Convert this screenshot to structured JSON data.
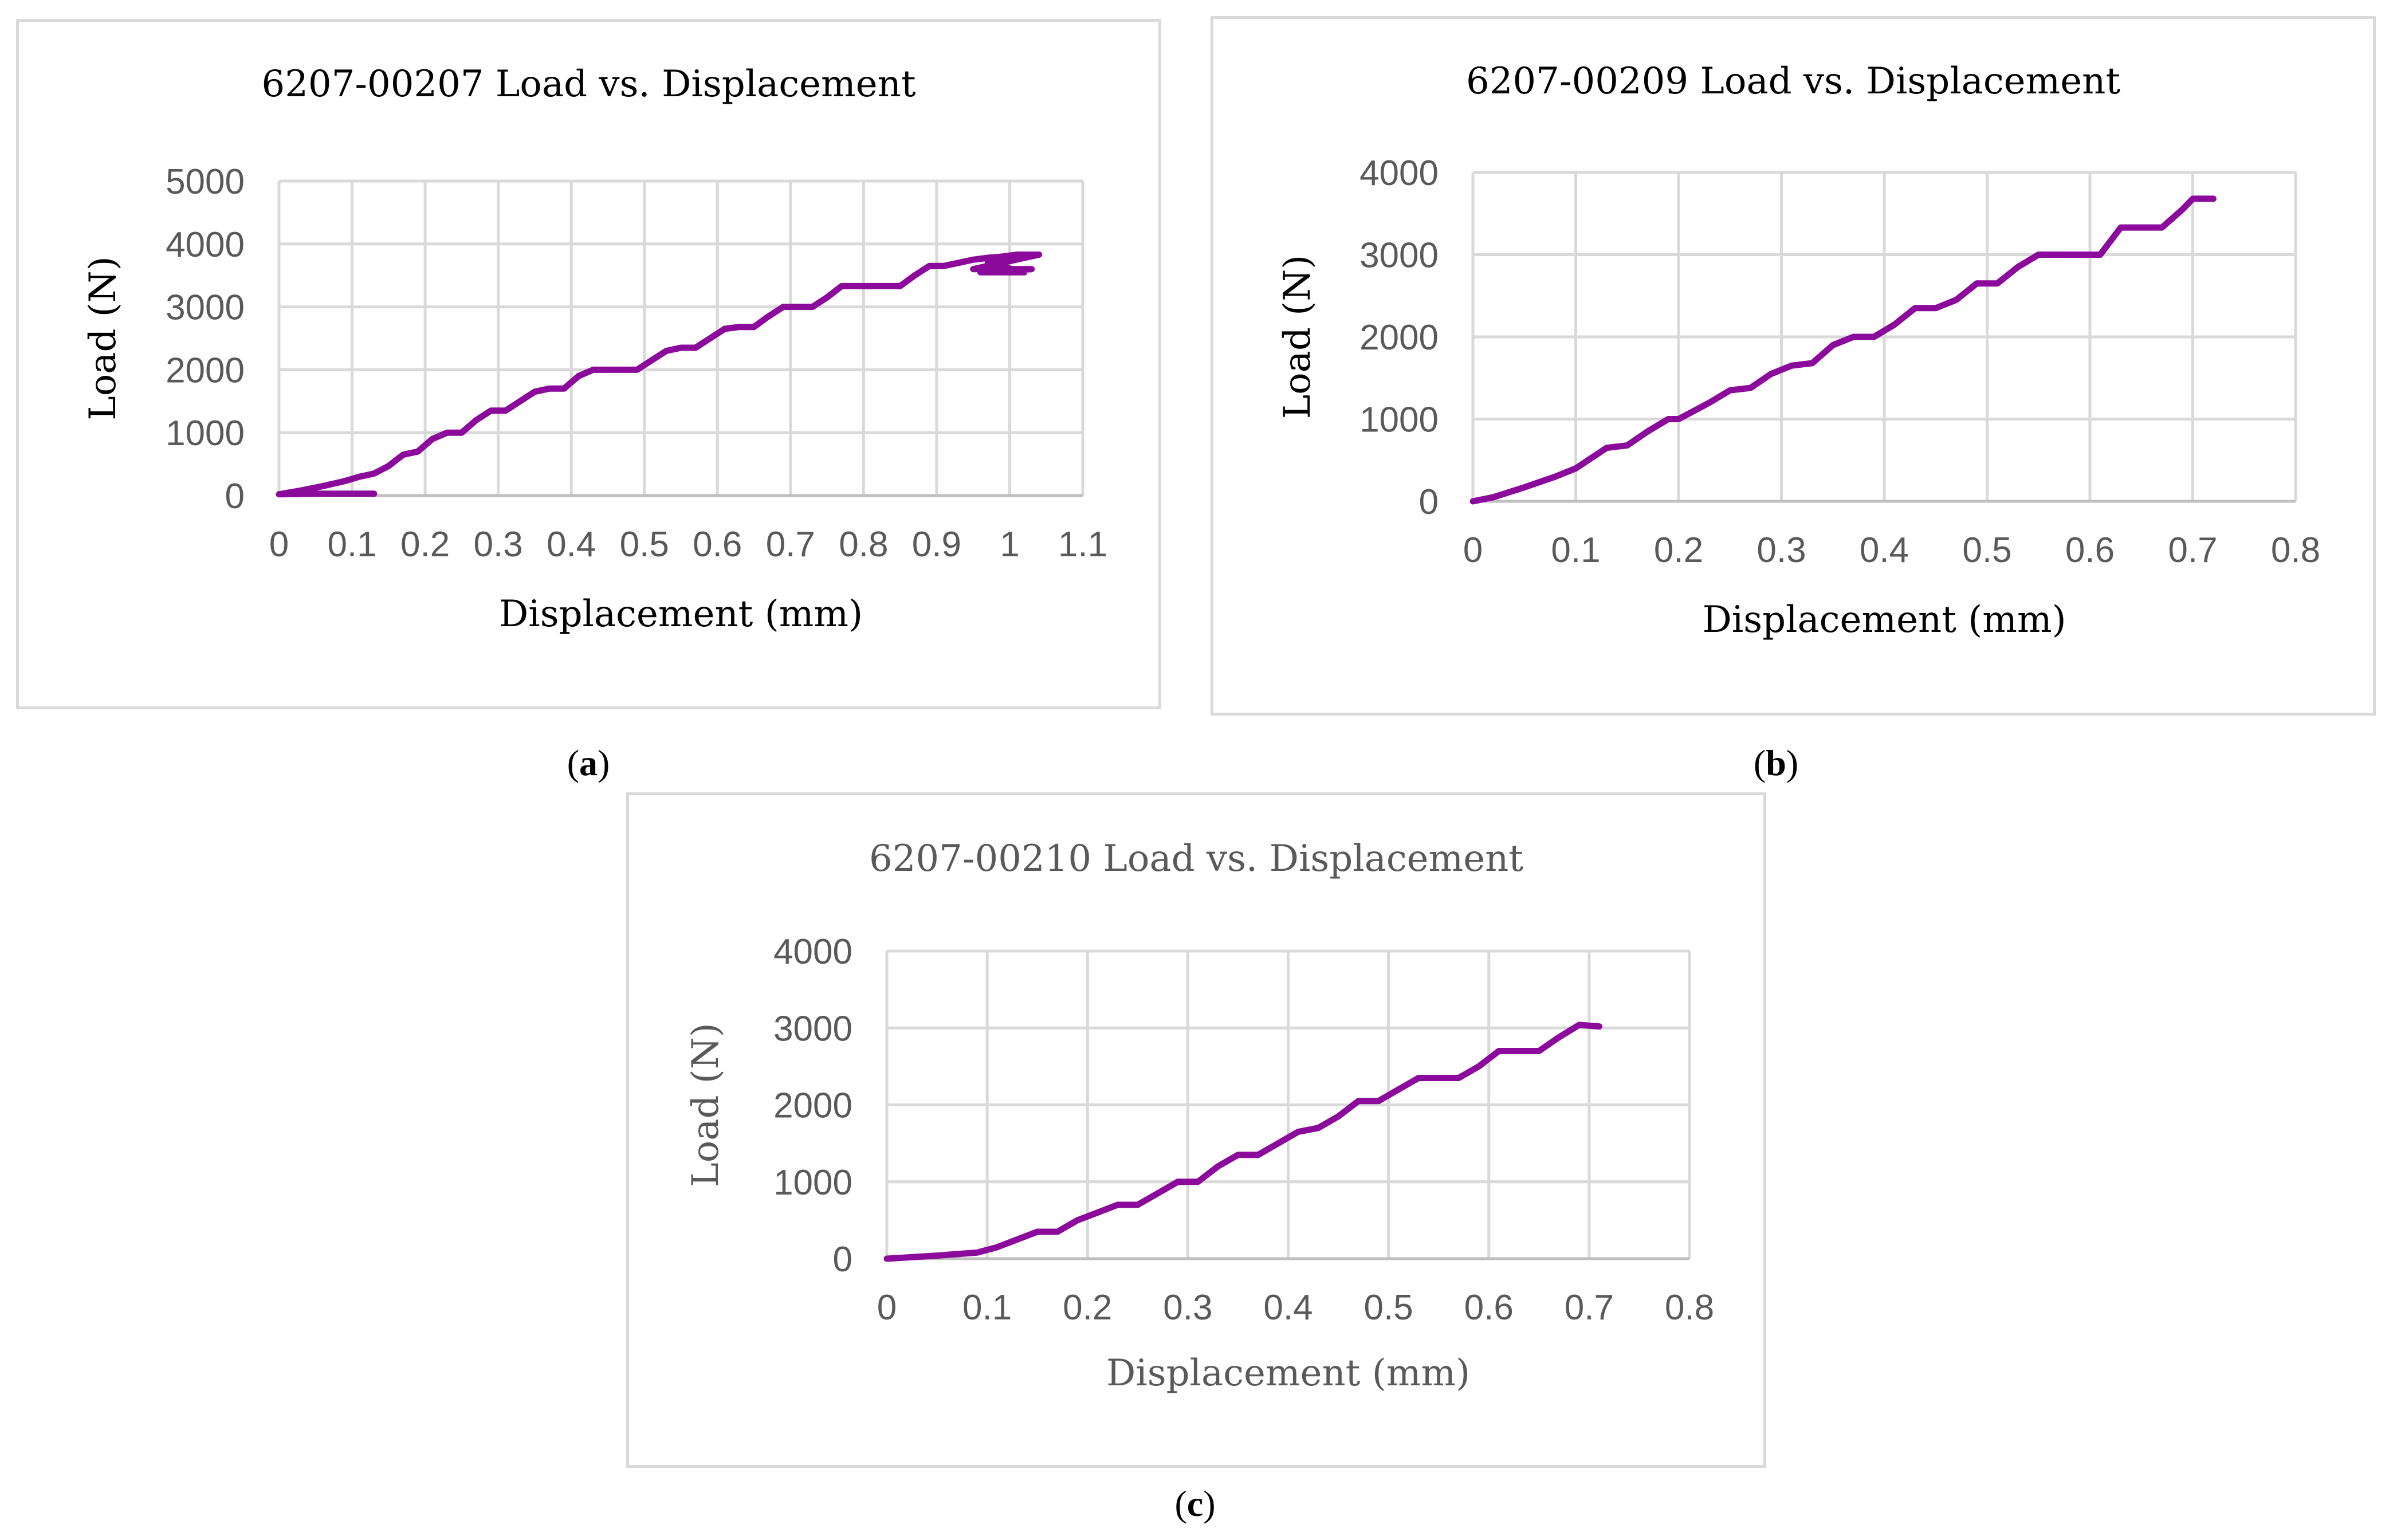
{
  "figure": {
    "captions": [
      "(a)",
      "(b)",
      "(c)"
    ]
  },
  "colors": {
    "series": "#8b0a9b",
    "grid": "#d9d9d9",
    "axis": "#bfbfbf",
    "tick_text": "#595959"
  },
  "chart_data": [
    {
      "type": "line",
      "title": "6207-00207 Load vs. Displacement",
      "xlabel": "Displacement (mm)",
      "ylabel": "Load (N)",
      "xlim": [
        0,
        1.1
      ],
      "ylim": [
        0,
        5000
      ],
      "xticks": [
        "0",
        "0.1",
        "0.2",
        "0.3",
        "0.4",
        "0.5",
        "0.6",
        "0.7",
        "0.8",
        "0.9",
        "1",
        "1.1"
      ],
      "yticks": [
        "0",
        "1000",
        "2000",
        "3000",
        "4000",
        "5000"
      ],
      "grid": true,
      "series": [
        {
          "name": "Load",
          "x": [
            0.13,
            0.05,
            0.0,
            0.03,
            0.06,
            0.09,
            0.11,
            0.13,
            0.15,
            0.17,
            0.19,
            0.21,
            0.23,
            0.25,
            0.27,
            0.29,
            0.31,
            0.33,
            0.35,
            0.37,
            0.39,
            0.41,
            0.43,
            0.45,
            0.47,
            0.49,
            0.51,
            0.53,
            0.55,
            0.57,
            0.59,
            0.61,
            0.63,
            0.65,
            0.67,
            0.69,
            0.71,
            0.73,
            0.75,
            0.77,
            0.79,
            0.81,
            0.83,
            0.85,
            0.87,
            0.89,
            0.91,
            0.93,
            0.95,
            0.97,
            0.99,
            1.01,
            1.04,
            0.95,
            1.03,
            0.96,
            1.02,
            0.97,
            1.04
          ],
          "y": [
            30,
            30,
            20,
            80,
            150,
            230,
            300,
            350,
            470,
            650,
            700,
            900,
            1000,
            1000,
            1200,
            1350,
            1350,
            1500,
            1650,
            1700,
            1700,
            1900,
            2000,
            2000,
            2000,
            2000,
            2150,
            2300,
            2350,
            2350,
            2500,
            2650,
            2680,
            2680,
            2850,
            3000,
            3000,
            3000,
            3150,
            3330,
            3330,
            3330,
            3330,
            3330,
            3500,
            3650,
            3650,
            3700,
            3750,
            3780,
            3800,
            3830,
            3830,
            3600,
            3600,
            3550,
            3550,
            3700,
            3830
          ]
        }
      ]
    },
    {
      "type": "line",
      "title": "6207-00209 Load vs. Displacement",
      "xlabel": "Displacement (mm)",
      "ylabel": "Load (N)",
      "xlim": [
        0,
        0.8
      ],
      "ylim": [
        0,
        4000
      ],
      "xticks": [
        "0",
        "0.1",
        "0.2",
        "0.3",
        "0.4",
        "0.5",
        "0.6",
        "0.7",
        "0.8"
      ],
      "yticks": [
        "0",
        "1000",
        "2000",
        "3000",
        "4000"
      ],
      "grid": true,
      "series": [
        {
          "name": "Load",
          "x": [
            0.0,
            0.02,
            0.05,
            0.08,
            0.1,
            0.13,
            0.15,
            0.17,
            0.19,
            0.2,
            0.23,
            0.25,
            0.27,
            0.29,
            0.31,
            0.33,
            0.35,
            0.37,
            0.39,
            0.41,
            0.43,
            0.45,
            0.47,
            0.49,
            0.51,
            0.53,
            0.55,
            0.57,
            0.59,
            0.61,
            0.63,
            0.65,
            0.67,
            0.69,
            0.7,
            0.72
          ],
          "y": [
            0,
            50,
            170,
            300,
            400,
            650,
            680,
            850,
            1000,
            1000,
            1200,
            1350,
            1380,
            1550,
            1650,
            1680,
            1900,
            2000,
            2000,
            2150,
            2350,
            2350,
            2450,
            2650,
            2650,
            2850,
            3000,
            3000,
            3000,
            3000,
            3330,
            3330,
            3330,
            3550,
            3680,
            3680
          ]
        }
      ]
    },
    {
      "type": "line",
      "title": "6207-00210 Load vs. Displacement",
      "xlabel": "Displacement (mm)",
      "ylabel": "Load (N)",
      "xlim": [
        0,
        0.8
      ],
      "ylim": [
        0,
        4000
      ],
      "xticks": [
        "0",
        "0.1",
        "0.2",
        "0.3",
        "0.4",
        "0.5",
        "0.6",
        "0.7",
        "0.8"
      ],
      "yticks": [
        "0",
        "1000",
        "2000",
        "3000",
        "4000"
      ],
      "grid": true,
      "series": [
        {
          "name": "Load",
          "x": [
            0.0,
            0.05,
            0.09,
            0.11,
            0.13,
            0.15,
            0.17,
            0.19,
            0.21,
            0.23,
            0.25,
            0.27,
            0.29,
            0.31,
            0.33,
            0.35,
            0.37,
            0.39,
            0.41,
            0.43,
            0.45,
            0.47,
            0.49,
            0.51,
            0.53,
            0.55,
            0.57,
            0.59,
            0.61,
            0.63,
            0.65,
            0.67,
            0.69,
            0.71
          ],
          "y": [
            0,
            40,
            80,
            150,
            250,
            350,
            350,
            500,
            600,
            700,
            700,
            850,
            1000,
            1000,
            1200,
            1350,
            1350,
            1500,
            1650,
            1700,
            1850,
            2050,
            2050,
            2200,
            2350,
            2350,
            2350,
            2500,
            2700,
            2700,
            2700,
            2880,
            3040,
            3020
          ]
        }
      ]
    }
  ]
}
